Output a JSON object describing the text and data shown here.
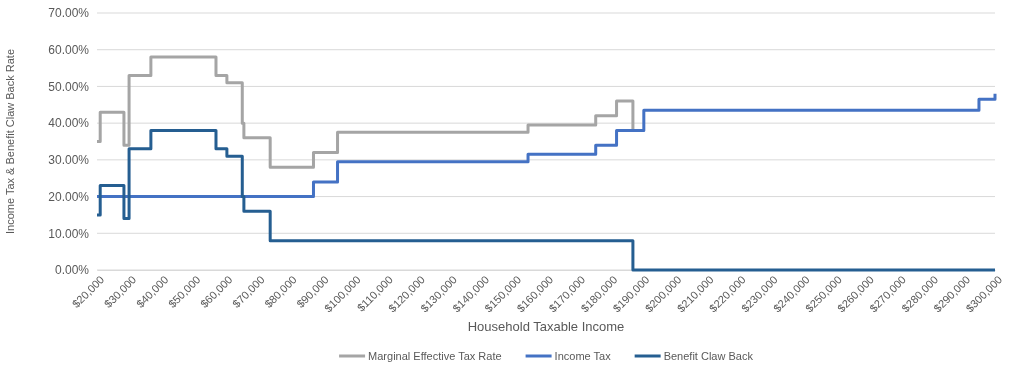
{
  "chart_data": {
    "type": "step",
    "xlabel": "Household Taxable Income",
    "ylabel": "Income Tax & Benefit Claw Back Rate",
    "xlim": [
      20000,
      300000
    ],
    "xticks": [
      {
        "value": 20000,
        "label": "$20,000"
      },
      {
        "value": 30000,
        "label": "$30,000"
      },
      {
        "value": 40000,
        "label": "$40,000"
      },
      {
        "value": 50000,
        "label": "$50,000"
      },
      {
        "value": 60000,
        "label": "$60,000"
      },
      {
        "value": 70000,
        "label": "$70,000"
      },
      {
        "value": 80000,
        "label": "$80,000"
      },
      {
        "value": 90000,
        "label": "$90,000"
      },
      {
        "value": 100000,
        "label": "$100,000"
      },
      {
        "value": 110000,
        "label": "$110,000"
      },
      {
        "value": 120000,
        "label": "$120,000"
      },
      {
        "value": 130000,
        "label": "$130,000"
      },
      {
        "value": 140000,
        "label": "$140,000"
      },
      {
        "value": 150000,
        "label": "$150,000"
      },
      {
        "value": 160000,
        "label": "$160,000"
      },
      {
        "value": 170000,
        "label": "$170,000"
      },
      {
        "value": 180000,
        "label": "$180,000"
      },
      {
        "value": 190000,
        "label": "$190,000"
      },
      {
        "value": 200000,
        "label": "$200,000"
      },
      {
        "value": 210000,
        "label": "$210,000"
      },
      {
        "value": 220000,
        "label": "$220,000"
      },
      {
        "value": 230000,
        "label": "$230,000"
      },
      {
        "value": 240000,
        "label": "$240,000"
      },
      {
        "value": 250000,
        "label": "$250,000"
      },
      {
        "value": 260000,
        "label": "$260,000"
      },
      {
        "value": 270000,
        "label": "$270,000"
      },
      {
        "value": 280000,
        "label": "$280,000"
      },
      {
        "value": 290000,
        "label": "$290,000"
      },
      {
        "value": 300000,
        "label": "$300,000"
      }
    ],
    "ylim": [
      0,
      70
    ],
    "yticks": [
      {
        "value": 0,
        "label": "0.00%"
      },
      {
        "value": 10,
        "label": "10.00%"
      },
      {
        "value": 20,
        "label": "20.00%"
      },
      {
        "value": 30,
        "label": "30.00%"
      },
      {
        "value": 40,
        "label": "40.00%"
      },
      {
        "value": 50,
        "label": "50.00%"
      },
      {
        "value": 60,
        "label": "60.00%"
      },
      {
        "value": 70,
        "label": "70.00%"
      }
    ],
    "grid": "y",
    "legend": "bottom",
    "marker": "none",
    "line_style": "solid",
    "series": [
      {
        "name": "Marginal Effective Tax Rate",
        "color": "#a5a5a5",
        "x": [
          20000,
          21000,
          28400,
          30000,
          36800,
          57100,
          60500,
          65300,
          65800,
          74000,
          87500,
          95000,
          154400,
          175500,
          182000,
          187100
        ],
        "values": [
          35,
          43,
          34,
          53,
          58,
          53,
          51,
          40,
          36,
          28,
          32,
          37.5,
          39.5,
          42,
          46,
          38
        ]
      },
      {
        "name": "Income Tax",
        "color": "#4472c4",
        "x": [
          20000,
          87500,
          95000,
          154400,
          175500,
          182000,
          190500,
          295000,
          300000
        ],
        "values": [
          20,
          24,
          29.5,
          31.5,
          34,
          38,
          43.5,
          46.5,
          48
        ]
      },
      {
        "name": "Benefit Claw Back",
        "color": "#255e91",
        "x": [
          20000,
          21000,
          28400,
          30000,
          36800,
          57100,
          60500,
          65300,
          65800,
          74000,
          187100,
          300000
        ],
        "values": [
          15,
          23,
          14,
          33,
          38,
          33,
          31,
          20,
          16,
          8,
          0,
          0
        ]
      }
    ]
  }
}
